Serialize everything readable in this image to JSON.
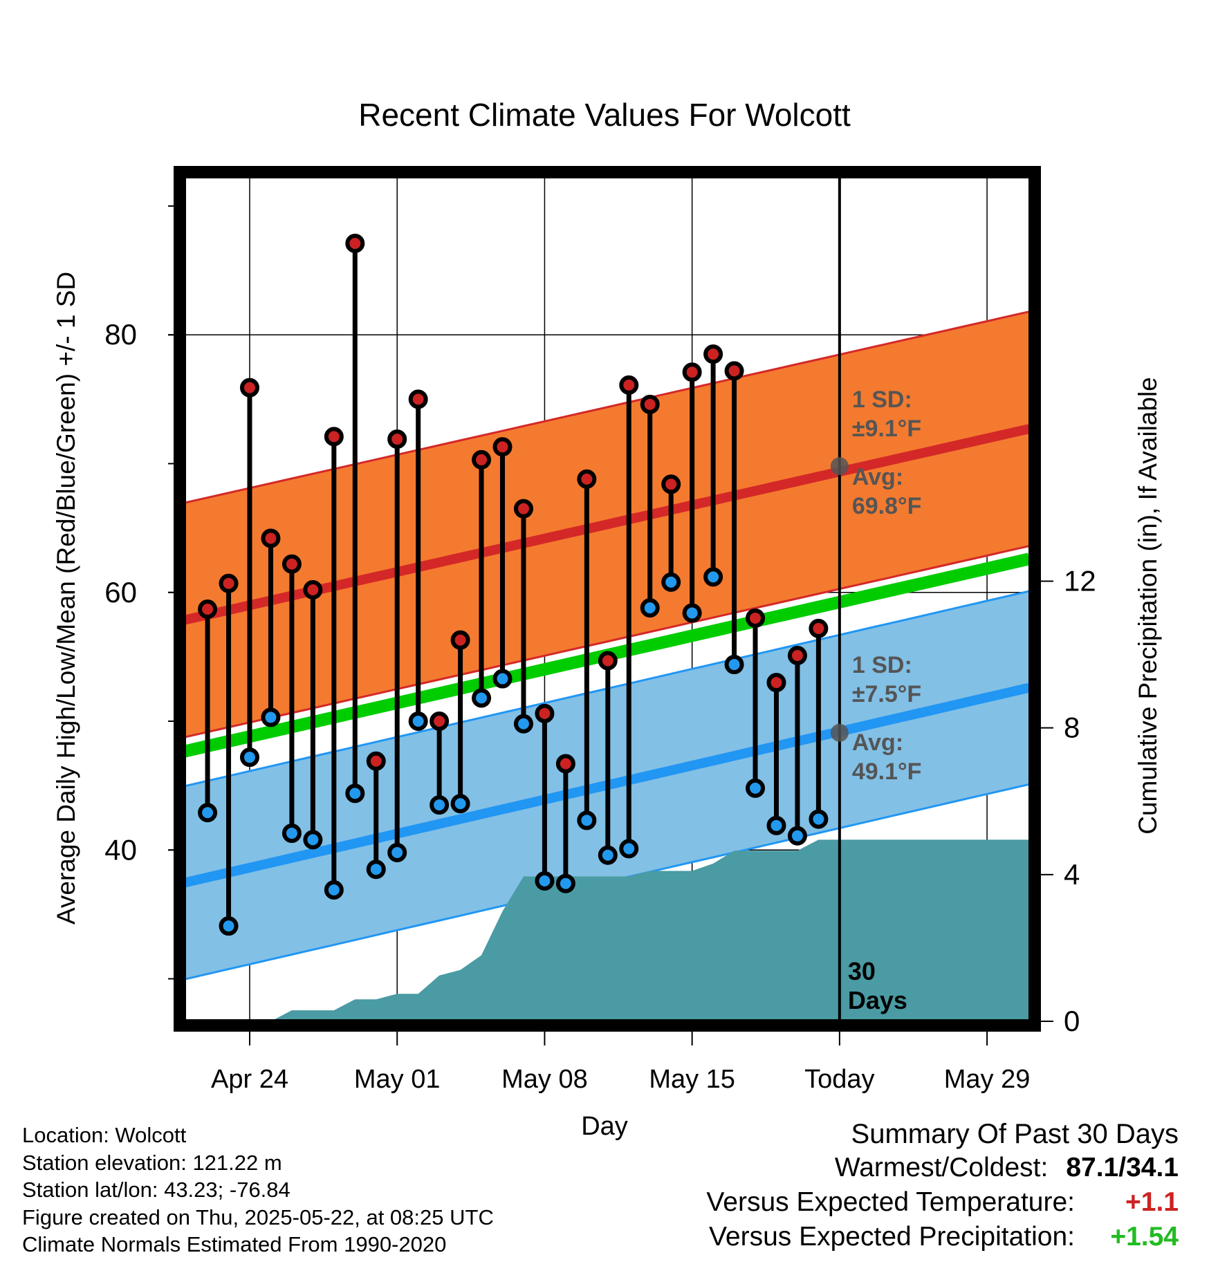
{
  "chart_data": {
    "type": "line",
    "title": "Recent Climate Values For Wolcott",
    "xlabel": "Day",
    "ylabel_left": "Average Daily High/Low/Mean (Red/Blue/Green) +/- 1 SD",
    "ylabel_right": "Cumulative Precipitation (in), If Available",
    "x_ticks": [
      {
        "day": 4,
        "label": "Apr 24"
      },
      {
        "day": 11,
        "label": "May 01"
      },
      {
        "day": 18,
        "label": "May 08"
      },
      {
        "day": 25,
        "label": "May 15"
      },
      {
        "day": 32,
        "label": "Today"
      },
      {
        "day": 39,
        "label": "May 29"
      }
    ],
    "xlim": [
      0.75,
      41.0
    ],
    "ylim_left": [
      26.7,
      92.2
    ],
    "ylim_right": [
      0,
      23
    ],
    "yticks_left": [
      40,
      60,
      80
    ],
    "yticks_right": [
      0,
      4,
      8,
      12
    ],
    "today_day": 32,
    "today_window_label": "30 Days",
    "normals": {
      "high_avg_start": 57.8,
      "high_avg_end": 72.7,
      "high_sd": 9.1,
      "low_avg_start": 37.4,
      "low_avg_end": 52.6,
      "low_sd": 7.5,
      "mean_start": 47.6,
      "mean_end": 62.6
    },
    "annotations": {
      "high_sd_label": "1 SD:",
      "high_sd_value": "±9.1°F",
      "high_avg_label": "Avg:",
      "high_avg_value": "69.8°F",
      "low_sd_label": "1 SD:",
      "low_sd_value": "±7.5°F",
      "low_avg_label": "Avg:",
      "low_avg_value": "49.1°F",
      "high_avg_today": 69.8,
      "low_avg_today": 49.1
    },
    "daily": [
      {
        "day": 2,
        "high": 58.7,
        "low": 42.9
      },
      {
        "day": 3,
        "high": 60.7,
        "low": 34.1
      },
      {
        "day": 4,
        "high": 75.9,
        "low": 47.2
      },
      {
        "day": 5,
        "high": 64.2,
        "low": 50.3
      },
      {
        "day": 6,
        "high": 62.2,
        "low": 41.3
      },
      {
        "day": 7,
        "high": 60.2,
        "low": 40.8
      },
      {
        "day": 8,
        "high": 72.1,
        "low": 36.9
      },
      {
        "day": 9,
        "high": 87.1,
        "low": 44.4
      },
      {
        "day": 10,
        "high": 46.9,
        "low": 38.5
      },
      {
        "day": 11,
        "high": 71.9,
        "low": 39.8
      },
      {
        "day": 12,
        "high": 75.0,
        "low": 50.0
      },
      {
        "day": 13,
        "high": 50.0,
        "low": 43.5
      },
      {
        "day": 14,
        "high": 56.3,
        "low": 43.6
      },
      {
        "day": 15,
        "high": 70.3,
        "low": 51.8
      },
      {
        "day": 16,
        "high": 71.3,
        "low": 53.3
      },
      {
        "day": 17,
        "high": 66.5,
        "low": 49.8
      },
      {
        "day": 18,
        "high": 50.6,
        "low": 37.6
      },
      {
        "day": 19,
        "high": 46.7,
        "low": 37.4
      },
      {
        "day": 20,
        "high": 68.8,
        "low": 42.3
      },
      {
        "day": 21,
        "high": 54.7,
        "low": 39.6
      },
      {
        "day": 22,
        "high": 76.1,
        "low": 40.1
      },
      {
        "day": 23,
        "high": 74.6,
        "low": 58.8
      },
      {
        "day": 24,
        "high": 68.4,
        "low": 60.8
      },
      {
        "day": 25,
        "high": 77.1,
        "low": 58.4
      },
      {
        "day": 26,
        "high": 78.5,
        "low": 61.2
      },
      {
        "day": 27,
        "high": 77.2,
        "low": 54.4
      },
      {
        "day": 28,
        "high": 58.0,
        "low": 44.8
      },
      {
        "day": 29,
        "high": 53.0,
        "low": 41.9
      },
      {
        "day": 30,
        "high": 55.1,
        "low": 41.1
      },
      {
        "day": 31,
        "high": 57.2,
        "low": 42.4
      }
    ],
    "precip_cumulative": [
      {
        "day": 1.5,
        "value": 0
      },
      {
        "day": 2,
        "value": 0
      },
      {
        "day": 3,
        "value": 0
      },
      {
        "day": 4,
        "value": 0
      },
      {
        "day": 5,
        "value": 0
      },
      {
        "day": 6,
        "value": 0.3
      },
      {
        "day": 7,
        "value": 0.3
      },
      {
        "day": 8,
        "value": 0.3
      },
      {
        "day": 9,
        "value": 0.6
      },
      {
        "day": 10,
        "value": 0.6
      },
      {
        "day": 11,
        "value": 0.75
      },
      {
        "day": 12,
        "value": 0.75
      },
      {
        "day": 13,
        "value": 1.25
      },
      {
        "day": 14,
        "value": 1.4
      },
      {
        "day": 15,
        "value": 1.8
      },
      {
        "day": 16,
        "value": 3.0
      },
      {
        "day": 17,
        "value": 3.95
      },
      {
        "day": 18,
        "value": 3.95
      },
      {
        "day": 19,
        "value": 3.95
      },
      {
        "day": 20,
        "value": 3.95
      },
      {
        "day": 21,
        "value": 3.95
      },
      {
        "day": 22,
        "value": 3.95
      },
      {
        "day": 23,
        "value": 4.1
      },
      {
        "day": 24,
        "value": 4.1
      },
      {
        "day": 25,
        "value": 4.1
      },
      {
        "day": 26,
        "value": 4.3
      },
      {
        "day": 27,
        "value": 4.65
      },
      {
        "day": 28,
        "value": 4.65
      },
      {
        "day": 29,
        "value": 4.65
      },
      {
        "day": 30,
        "value": 4.65
      },
      {
        "day": 31,
        "value": 4.95
      },
      {
        "day": 32,
        "value": 4.95
      },
      {
        "day": 41,
        "value": 4.95
      }
    ],
    "colors": {
      "high_band": "#f47a2f",
      "high_line": "#d42828",
      "low_band": "#82c0e6",
      "low_line": "#2196f3",
      "mean_line": "#00cc00",
      "precip_fill": "#4a9ba3",
      "high_marker": "#cc2222",
      "low_marker": "#2299ee",
      "annotation_text": "#555555"
    }
  },
  "footer": {
    "location": "Location: Wolcott",
    "elevation": "Station elevation: 121.22 m",
    "latlon": "Station lat/lon: 43.23; -76.84",
    "created": "Figure created on Thu, 2025-05-22, at 08:25 UTC",
    "normals": "Climate Normals Estimated From 1990-2020"
  },
  "summary": {
    "title": "Summary Of Past 30 Days",
    "warmest_label": "Warmest/Coldest:",
    "warmest_value": "87.1/34.1",
    "temp_label": "Versus Expected Temperature:",
    "temp_value": "+1.1",
    "temp_color": "#cc2222",
    "precip_label": "Versus Expected Precipitation:",
    "precip_value": "+1.54",
    "precip_color": "#22bb22"
  }
}
